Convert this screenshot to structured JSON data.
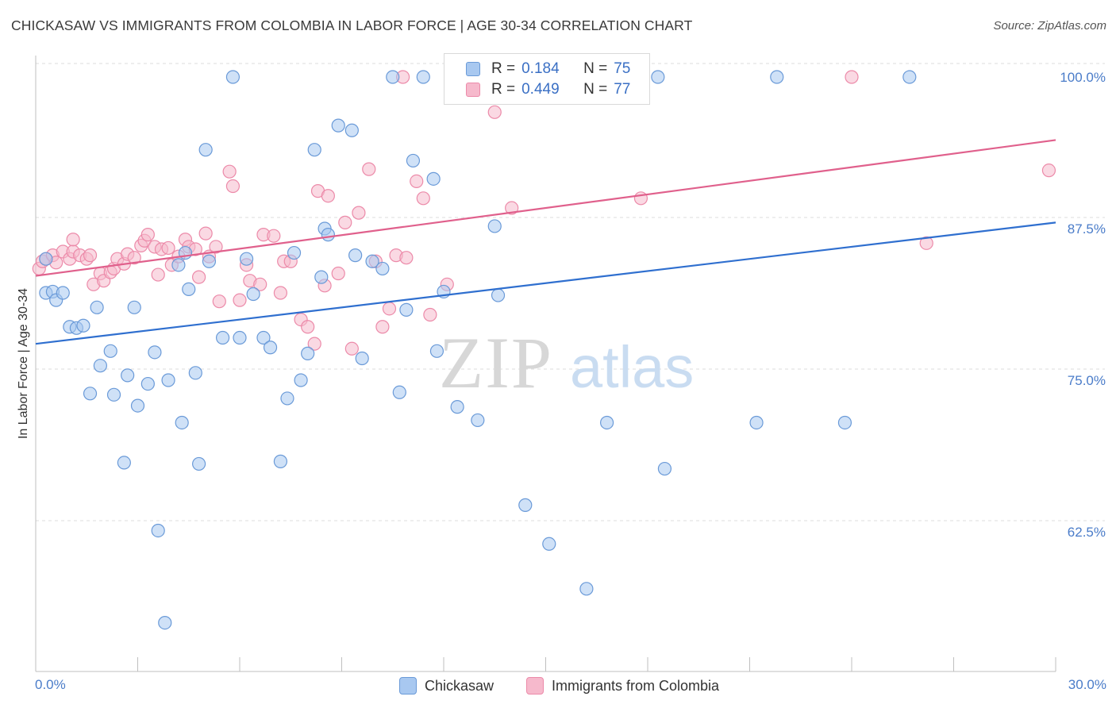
{
  "title": "CHICKASAW VS IMMIGRANTS FROM COLOMBIA IN LABOR FORCE | AGE 30-34 CORRELATION CHART",
  "source": "Source: ZipAtlas.com",
  "watermark": {
    "zip": "ZIP",
    "atlas": "atlas"
  },
  "legend": {
    "rows": [
      {
        "r_label": "R =",
        "r_value": "0.184",
        "n_label": "N =",
        "n_value": "75"
      },
      {
        "r_label": "R =",
        "r_value": "0.449",
        "n_label": "N =",
        "n_value": "77"
      }
    ]
  },
  "bottom_legend": [
    "Chickasaw",
    "Immigrants from Colombia"
  ],
  "colors": {
    "blue_fill": "#a8c8f0",
    "blue_stroke": "#6a9ad8",
    "blue_line": "#2f6fcf",
    "pink_fill": "#f6b9cc",
    "pink_stroke": "#ec8aa9",
    "pink_line": "#e0608c",
    "tick_text": "#4a7cc9",
    "grid": "#dddddd"
  },
  "chart_data": {
    "type": "scatter",
    "title": "CHICKASAW VS IMMIGRANTS FROM COLOMBIA IN LABOR FORCE | AGE 30-34 CORRELATION CHART",
    "xlabel": "",
    "ylabel": "In Labor Force | Age 30-34",
    "xlim": [
      0,
      30
    ],
    "ylim": [
      50,
      102
    ],
    "x_tick_labels": [
      "0.0%",
      "30.0%"
    ],
    "y_ticks": [
      62.5,
      75.0,
      87.5,
      100.0
    ],
    "y_tick_labels": [
      "62.5%",
      "75.0%",
      "87.5%",
      "100.0%"
    ],
    "series": [
      {
        "name": "Chickasaw",
        "R": 0.184,
        "N": 75,
        "trend": {
          "x": [
            0,
            30
          ],
          "y": [
            78.0,
            88.0
          ]
        },
        "points": [
          [
            0.3,
            85.0
          ],
          [
            0.3,
            82.2
          ],
          [
            0.5,
            82.3
          ],
          [
            0.6,
            81.6
          ],
          [
            0.8,
            82.2
          ],
          [
            1.0,
            79.4
          ],
          [
            1.2,
            79.3
          ],
          [
            1.4,
            79.5
          ],
          [
            1.6,
            73.9
          ],
          [
            1.8,
            81.0
          ],
          [
            1.9,
            76.2
          ],
          [
            2.2,
            77.4
          ],
          [
            2.3,
            73.8
          ],
          [
            2.6,
            68.2
          ],
          [
            2.7,
            75.4
          ],
          [
            2.9,
            81.0
          ],
          [
            3.0,
            72.9
          ],
          [
            3.3,
            74.7
          ],
          [
            3.5,
            77.3
          ],
          [
            3.6,
            62.6
          ],
          [
            3.8,
            55.0
          ],
          [
            3.9,
            75.0
          ],
          [
            4.2,
            84.5
          ],
          [
            4.3,
            71.5
          ],
          [
            4.5,
            82.5
          ],
          [
            4.7,
            75.6
          ],
          [
            4.8,
            68.1
          ],
          [
            5.0,
            94.0
          ],
          [
            5.1,
            84.8
          ],
          [
            5.5,
            78.5
          ],
          [
            5.8,
            100.0
          ],
          [
            6.0,
            78.5
          ],
          [
            6.2,
            85.0
          ],
          [
            6.4,
            82.1
          ],
          [
            6.7,
            78.5
          ],
          [
            6.9,
            77.7
          ],
          [
            7.2,
            68.3
          ],
          [
            7.4,
            73.5
          ],
          [
            7.6,
            85.5
          ],
          [
            7.8,
            75.0
          ],
          [
            8.0,
            77.2
          ],
          [
            8.2,
            94.0
          ],
          [
            8.4,
            83.5
          ],
          [
            8.5,
            87.5
          ],
          [
            8.6,
            87.0
          ],
          [
            8.9,
            96.0
          ],
          [
            9.3,
            95.6
          ],
          [
            9.4,
            85.3
          ],
          [
            9.6,
            76.8
          ],
          [
            9.9,
            84.8
          ],
          [
            10.2,
            84.2
          ],
          [
            10.5,
            100.0
          ],
          [
            10.7,
            74.0
          ],
          [
            10.9,
            80.8
          ],
          [
            11.1,
            93.1
          ],
          [
            11.4,
            100.0
          ],
          [
            11.7,
            91.6
          ],
          [
            11.8,
            77.4
          ],
          [
            12.0,
            82.3
          ],
          [
            12.4,
            72.8
          ],
          [
            13.0,
            71.7
          ],
          [
            13.5,
            87.7
          ],
          [
            13.6,
            82.0
          ],
          [
            14.4,
            64.7
          ],
          [
            15.1,
            61.5
          ],
          [
            15.6,
            100.0
          ],
          [
            16.2,
            57.8
          ],
          [
            16.8,
            71.5
          ],
          [
            18.3,
            100.0
          ],
          [
            18.5,
            67.7
          ],
          [
            21.2,
            71.5
          ],
          [
            21.8,
            100.0
          ],
          [
            23.8,
            71.5
          ],
          [
            25.7,
            100.0
          ],
          [
            4.4,
            85.5
          ]
        ]
      },
      {
        "name": "Immigrants from Colombia",
        "R": 0.449,
        "N": 77,
        "trend": {
          "x": [
            0,
            30
          ],
          "y": [
            83.6,
            94.8
          ]
        },
        "points": [
          [
            0.1,
            84.2
          ],
          [
            0.2,
            84.8
          ],
          [
            0.3,
            85.0
          ],
          [
            0.5,
            85.3
          ],
          [
            0.6,
            84.7
          ],
          [
            0.8,
            85.6
          ],
          [
            1.0,
            85.0
          ],
          [
            1.1,
            85.6
          ],
          [
            1.1,
            86.6
          ],
          [
            1.3,
            85.3
          ],
          [
            1.5,
            85.0
          ],
          [
            1.6,
            85.3
          ],
          [
            1.7,
            82.9
          ],
          [
            1.9,
            83.8
          ],
          [
            2.0,
            83.2
          ],
          [
            2.2,
            83.9
          ],
          [
            2.3,
            84.2
          ],
          [
            2.4,
            85.0
          ],
          [
            2.6,
            84.6
          ],
          [
            2.7,
            85.4
          ],
          [
            2.9,
            85.1
          ],
          [
            3.1,
            86.1
          ],
          [
            3.2,
            86.5
          ],
          [
            3.3,
            87.0
          ],
          [
            3.5,
            86.0
          ],
          [
            3.6,
            83.7
          ],
          [
            3.7,
            85.8
          ],
          [
            3.9,
            85.9
          ],
          [
            4.0,
            84.5
          ],
          [
            4.2,
            85.2
          ],
          [
            4.4,
            86.6
          ],
          [
            4.5,
            86.0
          ],
          [
            4.7,
            85.8
          ],
          [
            4.8,
            83.5
          ],
          [
            5.0,
            87.1
          ],
          [
            5.1,
            85.2
          ],
          [
            5.3,
            86.0
          ],
          [
            5.4,
            81.5
          ],
          [
            5.7,
            92.2
          ],
          [
            5.8,
            91.0
          ],
          [
            6.0,
            81.6
          ],
          [
            6.2,
            84.5
          ],
          [
            6.3,
            83.2
          ],
          [
            6.6,
            82.9
          ],
          [
            6.7,
            87.0
          ],
          [
            7.0,
            86.9
          ],
          [
            7.2,
            82.2
          ],
          [
            7.3,
            84.8
          ],
          [
            7.5,
            84.8
          ],
          [
            7.8,
            80.0
          ],
          [
            8.0,
            79.4
          ],
          [
            8.2,
            78.0
          ],
          [
            8.3,
            90.6
          ],
          [
            8.5,
            82.8
          ],
          [
            8.6,
            90.2
          ],
          [
            8.9,
            83.8
          ],
          [
            9.1,
            88.0
          ],
          [
            9.3,
            77.6
          ],
          [
            9.5,
            88.8
          ],
          [
            9.8,
            92.4
          ],
          [
            10.0,
            84.8
          ],
          [
            10.2,
            79.4
          ],
          [
            10.4,
            80.9
          ],
          [
            10.6,
            85.3
          ],
          [
            10.8,
            100.0
          ],
          [
            10.9,
            85.1
          ],
          [
            11.2,
            91.4
          ],
          [
            11.4,
            90.0
          ],
          [
            11.6,
            80.4
          ],
          [
            12.1,
            82.9
          ],
          [
            13.5,
            97.1
          ],
          [
            14.0,
            89.2
          ],
          [
            16.2,
            100.0
          ],
          [
            17.8,
            90.0
          ],
          [
            24.0,
            100.0
          ],
          [
            26.2,
            86.3
          ],
          [
            29.8,
            92.3
          ]
        ]
      }
    ]
  }
}
